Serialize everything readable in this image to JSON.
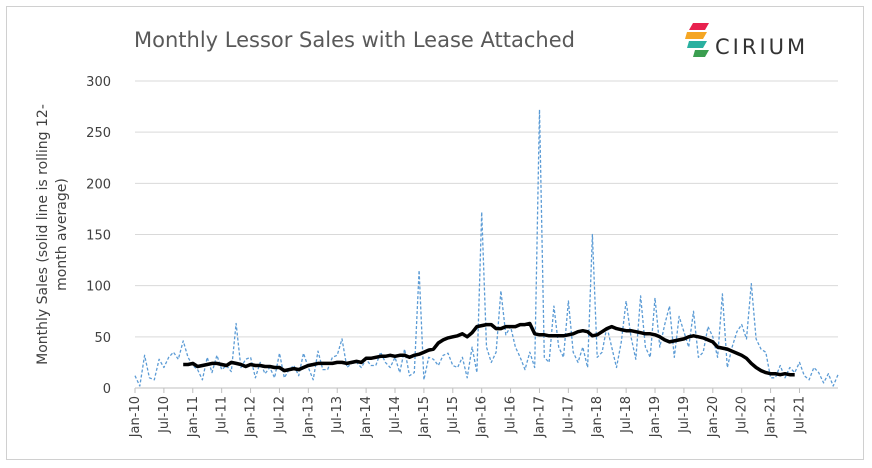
{
  "chart_data": {
    "type": "line",
    "title": "Monthly Lessor Sales with Lease Attached",
    "ylabel_lines": [
      "Monthly Sales (solid line is rolling 12-",
      "month average)"
    ],
    "xlabel": "",
    "ylim": [
      0,
      300
    ],
    "yticks": [
      0,
      50,
      100,
      150,
      200,
      250,
      300
    ],
    "grid": "horizontal",
    "legend": "none",
    "start": "Jan-10",
    "x_tick_labels": [
      "Jan-10",
      "Jul-10",
      "Jan-11",
      "Jul-11",
      "Jan-12",
      "Jul-12",
      "Jan-13",
      "Jul-13",
      "Jan-14",
      "Jul-14",
      "Jan-15",
      "Jul-15",
      "Jan-16",
      "Jul-16",
      "Jan-17",
      "Jul-17",
      "Jan-18",
      "Jul-18",
      "Jan-19",
      "Jul-19",
      "Jan-20",
      "Jul-20",
      "Jan-21",
      "Jul-21"
    ],
    "series": [
      {
        "style": "dashed",
        "color": "#5b9bd5",
        "values": [
          12,
          2,
          32,
          10,
          8,
          28,
          20,
          30,
          35,
          28,
          46,
          30,
          22,
          18,
          8,
          30,
          15,
          32,
          18,
          22,
          16,
          63,
          20,
          28,
          30,
          10,
          25,
          14,
          20,
          10,
          34,
          10,
          18,
          22,
          12,
          34,
          20,
          8,
          36,
          18,
          18,
          30,
          32,
          48,
          20,
          24,
          25,
          20,
          28,
          22,
          22,
          35,
          25,
          20,
          30,
          15,
          38,
          12,
          15,
          115,
          8,
          30,
          28,
          22,
          32,
          34,
          22,
          20,
          30,
          10,
          40,
          15,
          172,
          40,
          25,
          35,
          95,
          52,
          60,
          40,
          30,
          18,
          35,
          20,
          272,
          30,
          25,
          80,
          40,
          30,
          85,
          35,
          25,
          40,
          20,
          150,
          30,
          35,
          60,
          40,
          20,
          45,
          85,
          50,
          28,
          90,
          40,
          30,
          88,
          40,
          62,
          80,
          30,
          70,
          55,
          40,
          75,
          30,
          35,
          60,
          50,
          30,
          92,
          20,
          40,
          55,
          62,
          48,
          102,
          48,
          38,
          35,
          10,
          10,
          22,
          10,
          20,
          15,
          25,
          12,
          8,
          20,
          15,
          5,
          14,
          2,
          13
        ]
      },
      {
        "style": "solid",
        "color": "#000000",
        "values": [
          null,
          null,
          null,
          null,
          null,
          null,
          null,
          null,
          null,
          null,
          23,
          23,
          24,
          21,
          22,
          23,
          24,
          24,
          23,
          22,
          25,
          24,
          23,
          21,
          23,
          22,
          22,
          21,
          21,
          20,
          20,
          17,
          18,
          19,
          18,
          20,
          22,
          23,
          24,
          24,
          24,
          24,
          25,
          25,
          24,
          25,
          26,
          25,
          29,
          29,
          30,
          31,
          31,
          32,
          31,
          32,
          32,
          30,
          32,
          33,
          35,
          37,
          38,
          44,
          47,
          49,
          50,
          51,
          53,
          50,
          54,
          60,
          61,
          62,
          62,
          58,
          58,
          60,
          60,
          60,
          62,
          62,
          63,
          53,
          52,
          52,
          51,
          51,
          51,
          51,
          52,
          53,
          55,
          56,
          55,
          51,
          52,
          55,
          58,
          60,
          58,
          57,
          56,
          56,
          55,
          54,
          53,
          53,
          52,
          50,
          47,
          45,
          46,
          47,
          48,
          50,
          51,
          50,
          49,
          47,
          45,
          40,
          39,
          38,
          36,
          34,
          32,
          29,
          24,
          20,
          17,
          15,
          14,
          14,
          13,
          14,
          13,
          13
        ]
      }
    ]
  },
  "brand": {
    "name": "CIRIUM"
  }
}
